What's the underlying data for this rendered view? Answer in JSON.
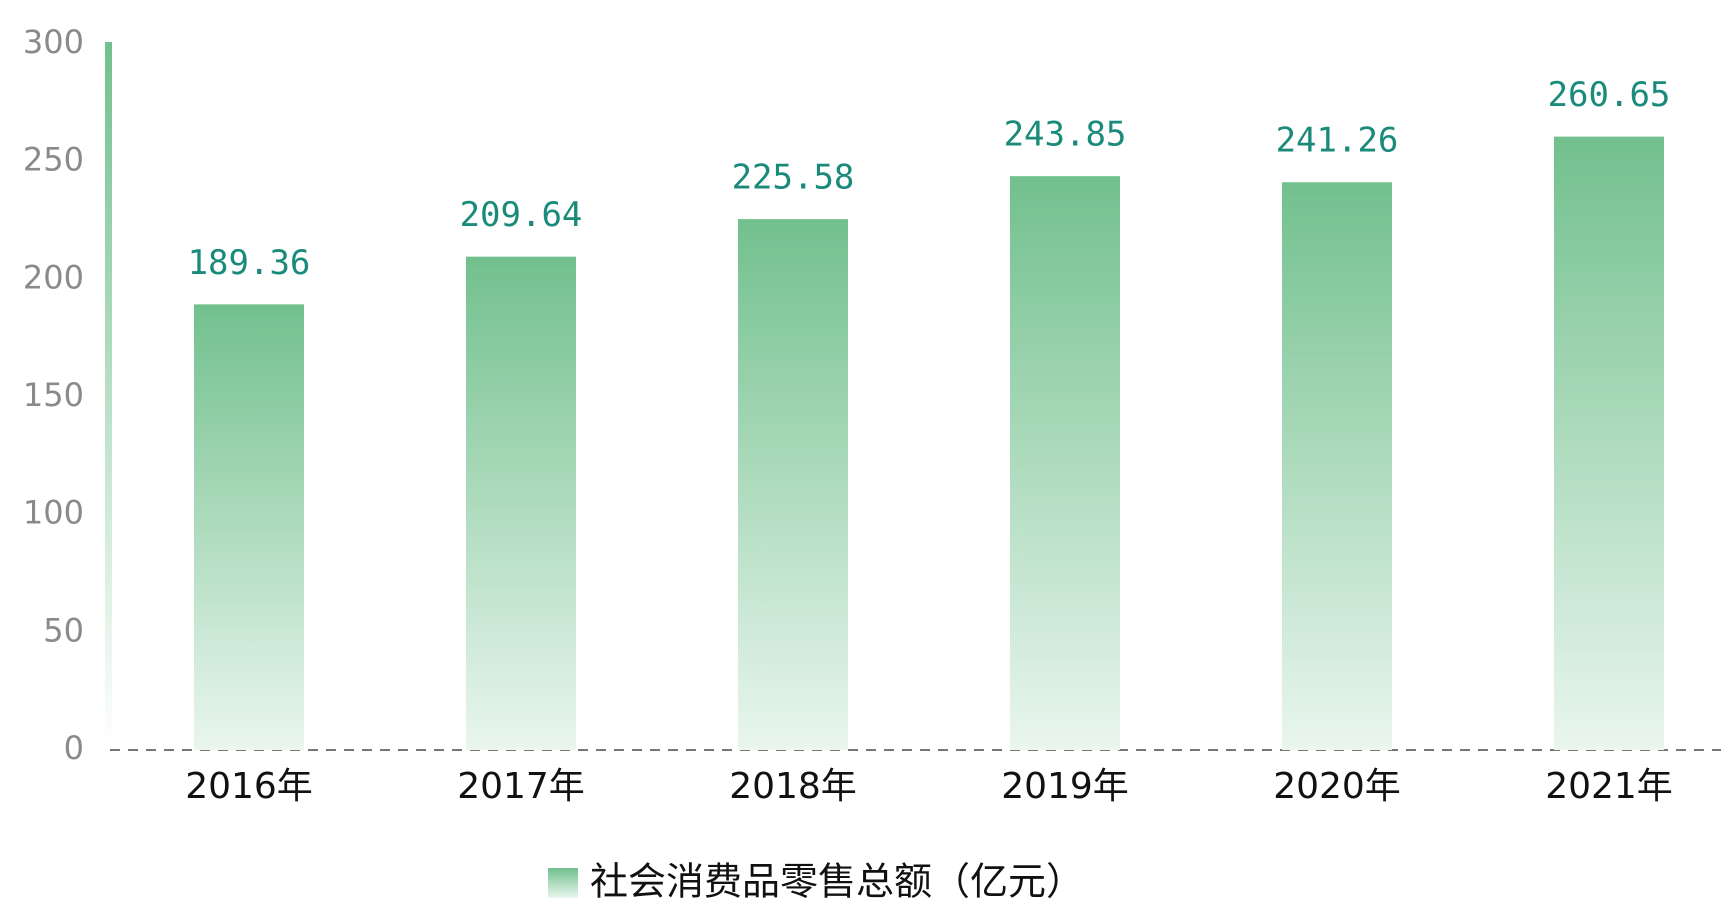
{
  "chart_data": {
    "type": "bar",
    "categories": [
      "2016年",
      "2017年",
      "2018年",
      "2019年",
      "2020年",
      "2021年"
    ],
    "series": [
      {
        "name": "社会消费品零售总额（亿元）",
        "color": "#72c08e",
        "values": [
          189.36,
          209.64,
          225.58,
          243.85,
          241.26,
          260.65
        ]
      }
    ],
    "ylim": [
      0,
      300
    ],
    "yticks": [
      0,
      50,
      100,
      150,
      200,
      250,
      300
    ]
  }
}
